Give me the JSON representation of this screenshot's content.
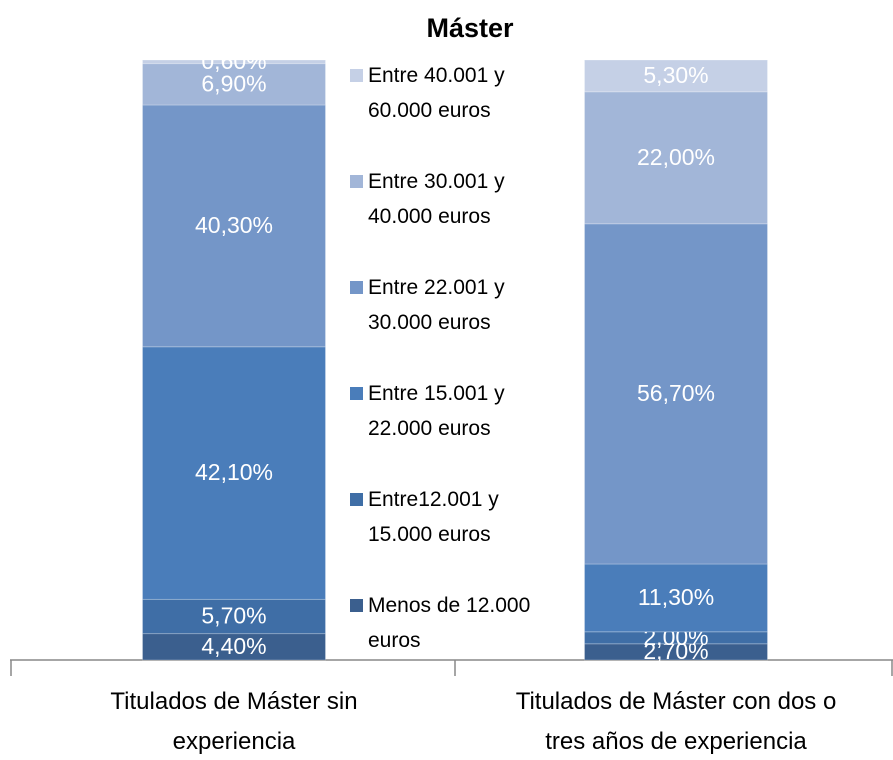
{
  "chart_data": {
    "type": "stacked_bar",
    "title": "Máster",
    "categories": [
      "Titulados de Máster sin experiencia",
      "Titulados de Máster con dos o tres años de experiencia"
    ],
    "series": [
      {
        "name": "Menos de 12.000 euros",
        "color": "#3b5f8e",
        "values": [
          4.4,
          2.7
        ],
        "value_labels": [
          "4,40%",
          "2,70%"
        ]
      },
      {
        "name": "Entre12.001 y 15.000 euros",
        "color": "#3f6ea6",
        "values": [
          5.7,
          2.0
        ],
        "value_labels": [
          "5,70%",
          "2,00%"
        ]
      },
      {
        "name": "Entre 15.001 y 22.000 euros",
        "color": "#4a7dba",
        "values": [
          42.1,
          11.3
        ],
        "value_labels": [
          "42,10%",
          "11,30%"
        ]
      },
      {
        "name": "Entre 22.001 y 30.000 euros",
        "color": "#7496c8",
        "values": [
          40.3,
          56.7
        ],
        "value_labels": [
          "40,30%",
          "56,70%"
        ]
      },
      {
        "name": "Entre 30.001 y 40.000 euros",
        "color": "#a2b6d8",
        "values": [
          6.9,
          22.0
        ],
        "value_labels": [
          "6,90%",
          "22,00%"
        ]
      },
      {
        "name": "Entre 40.001 y 60.000 euros",
        "color": "#c5d0e6",
        "values": [
          0.6,
          5.3
        ],
        "value_labels": [
          "0,60%",
          "5,30%"
        ]
      }
    ]
  }
}
